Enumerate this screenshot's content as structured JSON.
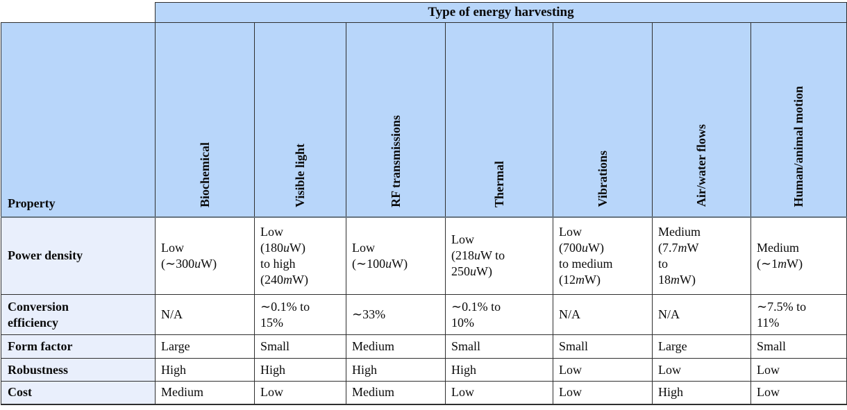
{
  "table": {
    "title": "Type of energy harvesting",
    "corner_label": "Property",
    "columns": [
      "Biochemical",
      "Visible light",
      "RF transmissions",
      "Thermal",
      "Vibrations",
      "Air/water flows",
      "Human/animal motion"
    ],
    "rows": [
      {
        "label": "Power density",
        "cells": [
          "Low\n(∼300uW)",
          "Low\n(180uW)\nto high\n(240mW)",
          "Low\n(∼100uW)",
          "Low\n(218uW to\n250uW)",
          "Low\n(700uW)\nto medium\n(12mW)",
          "Medium\n(7.7mW\nto\n18mW)",
          "Medium\n(∼1mW)"
        ]
      },
      {
        "label": "Conversion\nefficiency",
        "cells": [
          "N/A",
          "∼0.1% to\n15%",
          "∼33%",
          "∼0.1% to\n10%",
          "N/A",
          "N/A",
          "∼7.5% to\n11%"
        ]
      },
      {
        "label": "Form factor",
        "cells": [
          "Large",
          "Small",
          "Medium",
          "Small",
          "Small",
          "Large",
          "Small"
        ]
      },
      {
        "label": "Robustness",
        "cells": [
          "High",
          "High",
          "High",
          "High",
          "Low",
          "Low",
          "Low"
        ]
      },
      {
        "label": "Cost",
        "cells": [
          "Medium",
          "Low",
          "Medium",
          "Low",
          "Low",
          "High",
          "Low"
        ]
      }
    ],
    "colors": {
      "header_bg": "#b8d6fa",
      "label_bg": "#e9effc",
      "border": "#2e2e2e",
      "header_rule": "#66747f",
      "text": "#0a0a0a"
    }
  }
}
